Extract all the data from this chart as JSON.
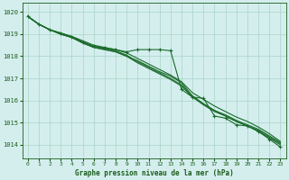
{
  "title": "Graphe pression niveau de la mer (hPa)",
  "background_color": "#d4eeee",
  "grid_color": "#b0d8cc",
  "line_color": "#1a6b2a",
  "text_color": "#1a5c1a",
  "xlim": [
    -0.5,
    23.5
  ],
  "ylim": [
    1013.4,
    1020.4
  ],
  "yticks": [
    1014,
    1015,
    1016,
    1017,
    1018,
    1019,
    1020
  ],
  "xticks": [
    0,
    1,
    2,
    3,
    4,
    5,
    6,
    7,
    8,
    9,
    10,
    11,
    12,
    13,
    14,
    15,
    16,
    17,
    18,
    19,
    20,
    21,
    22,
    23
  ],
  "series": [
    [
      1019.8,
      1019.45,
      1019.2,
      1019.05,
      1018.88,
      1018.65,
      1018.45,
      1018.38,
      1018.3,
      1018.2,
      1018.3,
      1018.3,
      1018.3,
      1018.25,
      1016.5,
      1016.15,
      1016.1,
      1015.3,
      1015.2,
      1014.9,
      1014.85,
      1014.6,
      1014.25,
      1013.9
    ],
    [
      1019.8,
      1019.45,
      1019.2,
      1019.0,
      1018.85,
      1018.6,
      1018.4,
      1018.3,
      1018.2,
      1018.0,
      1017.8,
      1017.55,
      1017.3,
      1017.1,
      1016.8,
      1016.2,
      1015.85,
      1015.55,
      1015.3,
      1015.05,
      1014.85,
      1014.6,
      1014.3,
      1014.0
    ],
    [
      1019.8,
      1019.45,
      1019.2,
      1019.0,
      1018.85,
      1018.6,
      1018.4,
      1018.3,
      1018.2,
      1018.0,
      1017.7,
      1017.45,
      1017.2,
      1016.95,
      1016.65,
      1016.15,
      1015.8,
      1015.5,
      1015.3,
      1015.05,
      1014.85,
      1014.65,
      1014.35,
      1014.05
    ],
    [
      1019.8,
      1019.45,
      1019.2,
      1019.0,
      1018.85,
      1018.65,
      1018.45,
      1018.35,
      1018.25,
      1018.05,
      1017.75,
      1017.5,
      1017.25,
      1017.0,
      1016.7,
      1016.2,
      1015.85,
      1015.55,
      1015.35,
      1015.1,
      1014.9,
      1014.7,
      1014.4,
      1014.1
    ],
    [
      1019.8,
      1019.45,
      1019.2,
      1019.05,
      1018.9,
      1018.7,
      1018.5,
      1018.4,
      1018.3,
      1018.15,
      1017.9,
      1017.65,
      1017.4,
      1017.15,
      1016.85,
      1016.35,
      1016.05,
      1015.75,
      1015.5,
      1015.25,
      1015.05,
      1014.8,
      1014.5,
      1014.15
    ]
  ],
  "marker_series": 0,
  "marker_style": "+",
  "marker_indices": [
    0,
    1,
    2,
    3,
    4,
    5,
    6,
    7,
    8,
    9,
    10,
    11,
    12,
    13,
    14,
    15,
    16,
    17,
    18,
    19,
    20,
    21,
    22,
    23
  ]
}
